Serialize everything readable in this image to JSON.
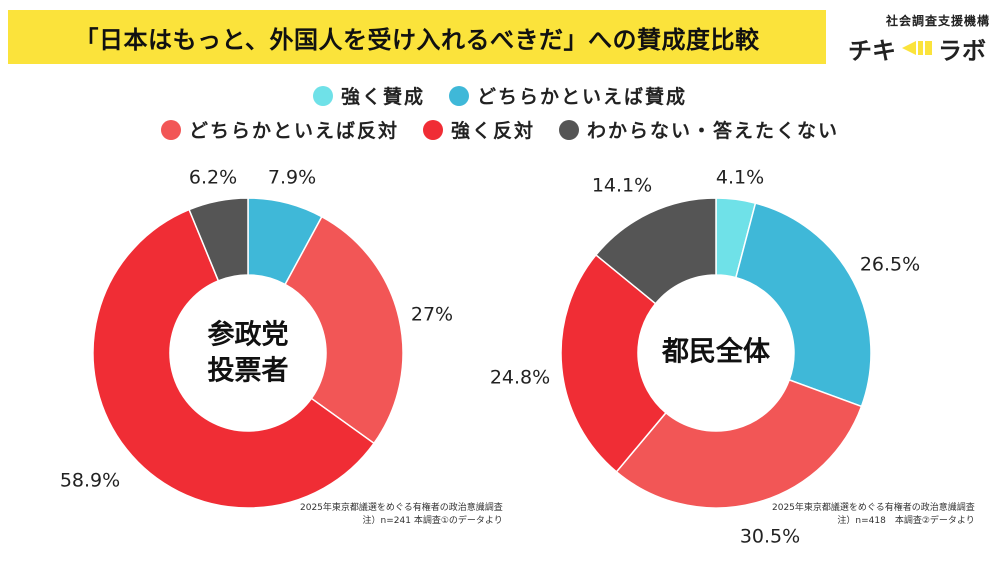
{
  "title": "「日本はもっと、外国人を受け入れるべきだ」への賛成度比較",
  "org": {
    "name": "社会調査支援機構",
    "logo_left": "チキ",
    "logo_right": "ラボ"
  },
  "legend_rows": [
    [
      {
        "label": "強く賛成",
        "color": "#6fe1e8"
      },
      {
        "label": "どちらかといえば賛成",
        "color": "#3fb8d8"
      }
    ],
    [
      {
        "label": "どちらかといえば反対",
        "color": "#f25656"
      },
      {
        "label": "強く反対",
        "color": "#f02d35"
      },
      {
        "label": "わからない・答えたくない",
        "color": "#555555"
      }
    ]
  ],
  "colors": {
    "strong_agree": "#6fe1e8",
    "agree": "#3fb8d8",
    "disagree": "#f25656",
    "strong_disagree": "#f02d35",
    "unknown": "#555555",
    "title_bg": "#fbe33b"
  },
  "chart_data": [
    {
      "type": "pie",
      "center_label": [
        "参政党",
        "投票者"
      ],
      "categories": [
        "強く賛成",
        "どちらかといえば賛成",
        "どちらかといえば反対",
        "強く反対",
        "わからない・答えたくない"
      ],
      "values": [
        0,
        7.9,
        27,
        58.9,
        6.2
      ],
      "value_labels": [
        "",
        "7.9%",
        "27%",
        "58.9%",
        "6.2%"
      ],
      "note": [
        "2025年東京都議選をめぐる有権者の政治意識調査",
        "注）n=241 本調査①のデータより"
      ]
    },
    {
      "type": "pie",
      "center_label": [
        "都民全体"
      ],
      "categories": [
        "強く賛成",
        "どちらかといえば賛成",
        "どちらかといえば反対",
        "強く反対",
        "わからない・答えたくない"
      ],
      "values": [
        4.1,
        26.5,
        30.5,
        24.8,
        14.1
      ],
      "value_labels": [
        "4.1%",
        "26.5%",
        "30.5%",
        "24.8%",
        "14.1%"
      ],
      "note": [
        "2025年東京都議選をめぐる有権者の政治意識調査",
        "注）n=418　本調査②データより"
      ]
    }
  ]
}
